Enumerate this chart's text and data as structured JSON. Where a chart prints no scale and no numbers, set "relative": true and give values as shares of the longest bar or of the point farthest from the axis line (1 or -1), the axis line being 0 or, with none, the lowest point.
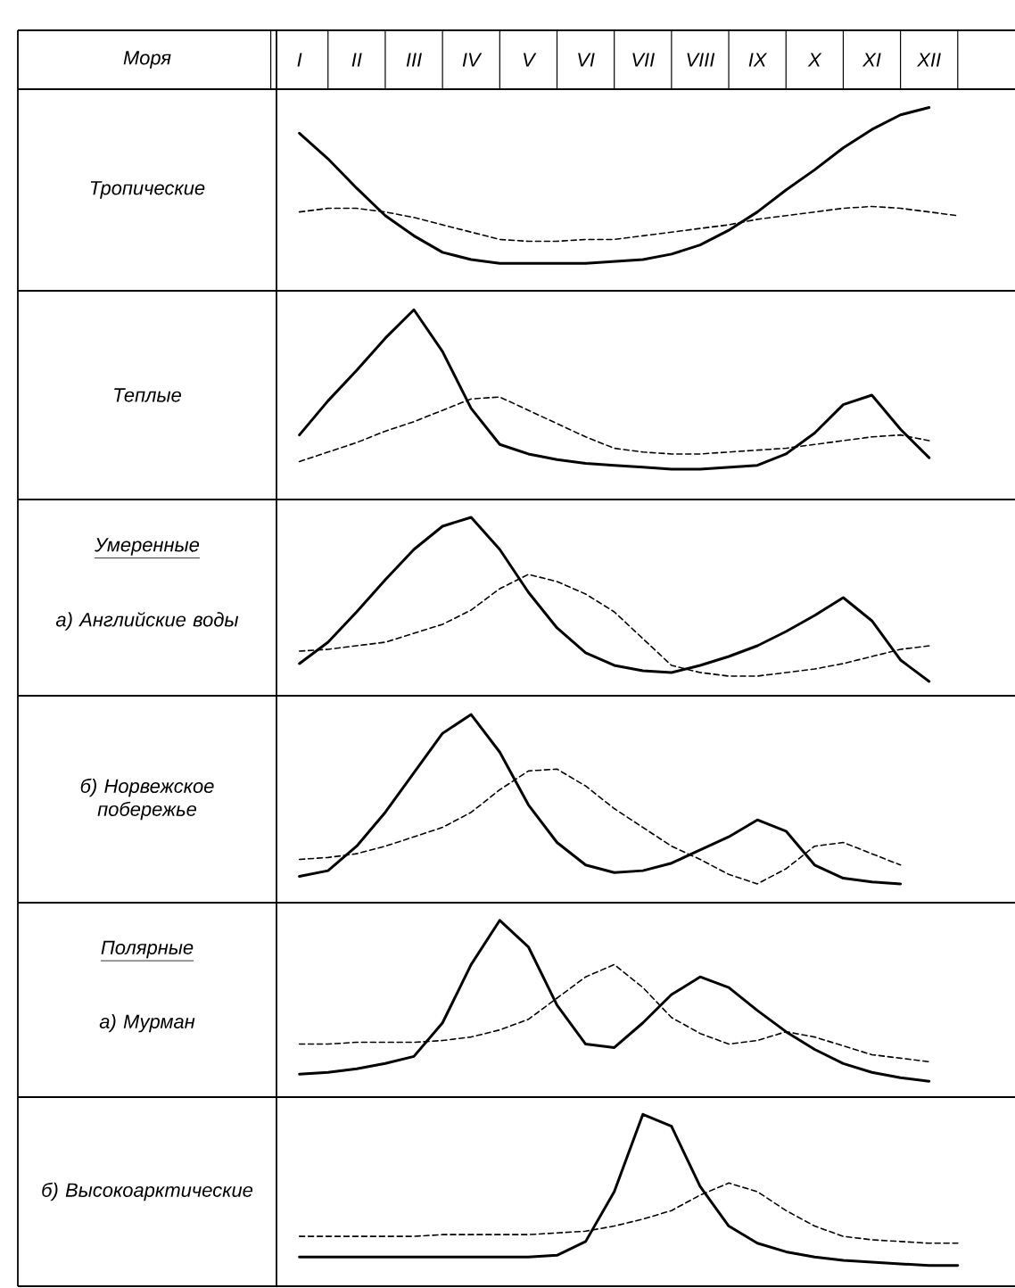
{
  "chart_data": [
    {
      "type": "line",
      "relative": true,
      "title": "Тропические",
      "annotations": [
        "Моря"
      ],
      "tick_labels": "x",
      "categories": [
        "I",
        null,
        "II",
        null,
        "III",
        null,
        "IV",
        null,
        "V",
        null,
        "VI",
        null,
        "VII",
        null,
        "VIII",
        null,
        "IX",
        null,
        "X",
        null,
        "XI",
        null,
        "XII",
        null
      ],
      "series": [
        {
          "color": "#000000",
          "line_style": "solid",
          "values": [
            0.86,
            0.72,
            0.56,
            0.41,
            0.3,
            0.21,
            0.17,
            0.15,
            0.15,
            0.15,
            0.15,
            0.16,
            0.17,
            0.2,
            0.25,
            0.33,
            0.43,
            0.55,
            0.66,
            0.78,
            0.88,
            0.96,
            1.0,
            null
          ]
        },
        {
          "color": "#000000",
          "line_style": "dashed",
          "values": [
            0.43,
            0.45,
            0.45,
            0.43,
            0.4,
            0.36,
            0.32,
            0.28,
            0.27,
            0.27,
            0.28,
            0.28,
            0.3,
            0.32,
            0.34,
            0.36,
            0.39,
            0.41,
            0.43,
            0.45,
            0.46,
            0.45,
            0.43,
            0.41
          ]
        }
      ]
    },
    {
      "type": "line",
      "relative": true,
      "title": "Теплые",
      "tick_labels": false,
      "categories": [
        null,
        null,
        null,
        null,
        null,
        null,
        null,
        null,
        null,
        null,
        null,
        null,
        null,
        null,
        null,
        null,
        null,
        null,
        null,
        null,
        null,
        null,
        null,
        null
      ],
      "series": [
        {
          "color": "#000000",
          "line_style": "solid",
          "values": [
            0.34,
            0.52,
            0.68,
            0.85,
            1.0,
            0.78,
            0.48,
            0.29,
            0.24,
            0.21,
            0.19,
            0.18,
            0.17,
            0.16,
            0.16,
            0.17,
            0.18,
            0.24,
            0.35,
            0.5,
            0.55,
            0.37,
            0.22,
            null
          ]
        },
        {
          "color": "#000000",
          "line_style": "dashed",
          "values": [
            0.2,
            0.25,
            0.3,
            0.36,
            0.41,
            0.47,
            0.53,
            0.54,
            0.47,
            0.4,
            0.33,
            0.27,
            0.25,
            0.24,
            0.24,
            0.25,
            0.26,
            0.27,
            0.29,
            0.31,
            0.33,
            0.34,
            0.31,
            null
          ]
        }
      ]
    },
    {
      "type": "line",
      "relative": true,
      "title": "Умеренные",
      "subtitle": "а) Английские воды",
      "tick_labels": false,
      "categories": [
        null,
        null,
        null,
        null,
        null,
        null,
        null,
        null,
        null,
        null,
        null,
        null,
        null,
        null,
        null,
        null,
        null,
        null,
        null,
        null,
        null,
        null,
        null,
        null
      ],
      "series": [
        {
          "color": "#000000",
          "line_style": "solid",
          "values": [
            0.18,
            0.3,
            0.47,
            0.65,
            0.82,
            0.95,
            1.0,
            0.82,
            0.58,
            0.38,
            0.24,
            0.17,
            0.14,
            0.13,
            0.17,
            0.22,
            0.28,
            0.36,
            0.45,
            0.55,
            0.42,
            0.2,
            0.08,
            null
          ]
        },
        {
          "color": "#000000",
          "line_style": "dashed",
          "values": [
            0.25,
            0.26,
            0.28,
            0.3,
            0.35,
            0.4,
            0.48,
            0.6,
            0.68,
            0.64,
            0.57,
            0.47,
            0.32,
            0.17,
            0.13,
            0.11,
            0.11,
            0.13,
            0.15,
            0.18,
            0.22,
            0.26,
            0.28,
            null
          ]
        }
      ]
    },
    {
      "type": "line",
      "relative": true,
      "title": "б) Норвежское побережье",
      "tick_labels": false,
      "categories": [
        null,
        null,
        null,
        null,
        null,
        null,
        null,
        null,
        null,
        null,
        null,
        null,
        null,
        null,
        null,
        null,
        null,
        null,
        null,
        null,
        null,
        null,
        null,
        null
      ],
      "series": [
        {
          "color": "#000000",
          "line_style": "solid",
          "values": [
            0.14,
            0.17,
            0.3,
            0.48,
            0.69,
            0.9,
            1.0,
            0.8,
            0.52,
            0.32,
            0.2,
            0.16,
            0.17,
            0.21,
            0.28,
            0.35,
            0.44,
            0.38,
            0.2,
            0.13,
            0.11,
            0.1,
            null,
            null
          ]
        },
        {
          "color": "#000000",
          "line_style": "dashed",
          "values": [
            0.23,
            0.24,
            0.26,
            0.3,
            0.35,
            0.4,
            0.48,
            0.6,
            0.7,
            0.71,
            0.62,
            0.5,
            0.4,
            0.3,
            0.23,
            0.15,
            0.1,
            0.18,
            0.3,
            0.32,
            0.26,
            0.2,
            null,
            null
          ]
        }
      ]
    },
    {
      "type": "line",
      "relative": true,
      "title": "Полярные",
      "subtitle": "а) Мурман",
      "tick_labels": false,
      "categories": [
        null,
        null,
        null,
        null,
        null,
        null,
        null,
        null,
        null,
        null,
        null,
        null,
        null,
        null,
        null,
        null,
        null,
        null,
        null,
        null,
        null,
        null,
        null,
        null
      ],
      "series": [
        {
          "color": "#000000",
          "line_style": "solid",
          "values": [
            0.13,
            0.14,
            0.16,
            0.19,
            0.23,
            0.42,
            0.75,
            1.0,
            0.85,
            0.52,
            0.3,
            0.28,
            0.42,
            0.58,
            0.68,
            0.62,
            0.49,
            0.37,
            0.27,
            0.19,
            0.14,
            0.11,
            0.09,
            null
          ]
        },
        {
          "color": "#000000",
          "line_style": "dashed",
          "values": [
            0.3,
            0.3,
            0.31,
            0.31,
            0.31,
            0.32,
            0.34,
            0.38,
            0.44,
            0.56,
            0.68,
            0.75,
            0.62,
            0.45,
            0.36,
            0.3,
            0.32,
            0.37,
            0.34,
            0.29,
            0.24,
            0.22,
            0.2,
            null
          ]
        }
      ]
    },
    {
      "type": "line",
      "relative": true,
      "title": "б) Высокоарктические",
      "tick_labels": false,
      "categories": [
        null,
        null,
        null,
        null,
        null,
        null,
        null,
        null,
        null,
        null,
        null,
        null,
        null,
        null,
        null,
        null,
        null,
        null,
        null,
        null,
        null,
        null,
        null,
        null
      ],
      "series": [
        {
          "color": "#000000",
          "line_style": "solid",
          "values": [
            0.17,
            0.17,
            0.17,
            0.17,
            0.17,
            0.17,
            0.17,
            0.17,
            0.17,
            0.18,
            0.26,
            0.55,
            1.0,
            0.93,
            0.58,
            0.35,
            0.25,
            0.2,
            0.17,
            0.15,
            0.14,
            0.13,
            0.12,
            0.12
          ]
        },
        {
          "color": "#000000",
          "line_style": "dashed",
          "values": [
            0.29,
            0.29,
            0.29,
            0.29,
            0.29,
            0.3,
            0.3,
            0.3,
            0.3,
            0.31,
            0.32,
            0.35,
            0.39,
            0.44,
            0.53,
            0.6,
            0.55,
            0.44,
            0.35,
            0.29,
            0.27,
            0.26,
            0.25,
            0.25
          ]
        }
      ]
    }
  ]
}
